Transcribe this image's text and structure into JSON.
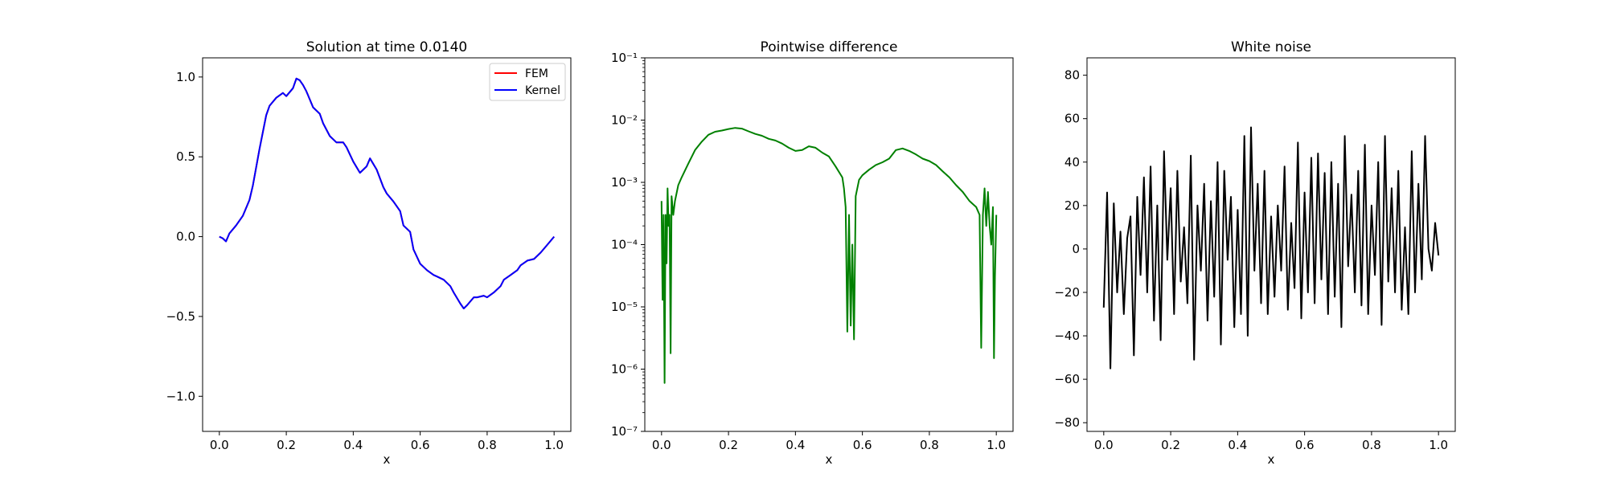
{
  "chart_data": [
    {
      "type": "line",
      "title": "Solution at time 0.0140",
      "xlabel": "x",
      "ylabel": "",
      "xlim": [
        -0.05,
        1.05
      ],
      "ylim": [
        -1.22,
        1.12
      ],
      "xticks": [
        0.0,
        0.2,
        0.4,
        0.6,
        0.8,
        1.0
      ],
      "xtick_labels": [
        "0.0",
        "0.2",
        "0.4",
        "0.6",
        "0.8",
        "1.0"
      ],
      "yticks": [
        -1.0,
        -0.5,
        0.0,
        0.5,
        1.0
      ],
      "ytick_labels": [
        "−1.0",
        "−0.5",
        "0.0",
        "0.5",
        "1.0"
      ],
      "legend_position": "upper right",
      "series": [
        {
          "name": "FEM",
          "color": "#ff0000",
          "x": [
            0.0,
            0.01,
            0.02,
            0.03,
            0.05,
            0.07,
            0.09,
            0.1,
            0.12,
            0.14,
            0.15,
            0.17,
            0.19,
            0.2,
            0.22,
            0.23,
            0.24,
            0.25,
            0.26,
            0.28,
            0.3,
            0.31,
            0.33,
            0.35,
            0.37,
            0.38,
            0.4,
            0.42,
            0.44,
            0.45,
            0.47,
            0.49,
            0.5,
            0.52,
            0.54,
            0.55,
            0.57,
            0.58,
            0.6,
            0.62,
            0.64,
            0.65,
            0.67,
            0.69,
            0.7,
            0.72,
            0.73,
            0.74,
            0.76,
            0.77,
            0.79,
            0.8,
            0.82,
            0.84,
            0.85,
            0.87,
            0.89,
            0.9,
            0.92,
            0.94,
            0.96,
            0.98,
            1.0
          ],
          "y": [
            0.0,
            -0.01,
            -0.03,
            0.02,
            0.07,
            0.13,
            0.23,
            0.32,
            0.55,
            0.76,
            0.82,
            0.87,
            0.9,
            0.88,
            0.93,
            0.99,
            0.98,
            0.95,
            0.91,
            0.81,
            0.77,
            0.71,
            0.63,
            0.59,
            0.59,
            0.56,
            0.47,
            0.4,
            0.44,
            0.49,
            0.42,
            0.31,
            0.27,
            0.22,
            0.16,
            0.07,
            0.03,
            -0.08,
            -0.17,
            -0.21,
            -0.24,
            -0.25,
            -0.27,
            -0.31,
            -0.35,
            -0.42,
            -0.45,
            -0.43,
            -0.38,
            -0.38,
            -0.37,
            -0.38,
            -0.35,
            -0.31,
            -0.27,
            -0.24,
            -0.21,
            -0.18,
            -0.15,
            -0.14,
            -0.1,
            -0.05,
            0.0
          ]
        },
        {
          "name": "Kernel",
          "color": "#0000ff",
          "x": [
            0.0,
            0.01,
            0.02,
            0.03,
            0.05,
            0.07,
            0.09,
            0.1,
            0.12,
            0.14,
            0.15,
            0.17,
            0.19,
            0.2,
            0.22,
            0.23,
            0.24,
            0.25,
            0.26,
            0.28,
            0.3,
            0.31,
            0.33,
            0.35,
            0.37,
            0.38,
            0.4,
            0.42,
            0.44,
            0.45,
            0.47,
            0.49,
            0.5,
            0.52,
            0.54,
            0.55,
            0.57,
            0.58,
            0.6,
            0.62,
            0.64,
            0.65,
            0.67,
            0.69,
            0.7,
            0.72,
            0.73,
            0.74,
            0.76,
            0.77,
            0.79,
            0.8,
            0.82,
            0.84,
            0.85,
            0.87,
            0.89,
            0.9,
            0.92,
            0.94,
            0.96,
            0.98,
            1.0
          ],
          "y": [
            0.0,
            -0.01,
            -0.03,
            0.02,
            0.07,
            0.13,
            0.23,
            0.32,
            0.55,
            0.76,
            0.82,
            0.87,
            0.9,
            0.88,
            0.93,
            0.99,
            0.98,
            0.95,
            0.91,
            0.81,
            0.77,
            0.71,
            0.63,
            0.59,
            0.59,
            0.56,
            0.47,
            0.4,
            0.44,
            0.49,
            0.42,
            0.31,
            0.27,
            0.22,
            0.16,
            0.07,
            0.03,
            -0.08,
            -0.17,
            -0.21,
            -0.24,
            -0.25,
            -0.27,
            -0.31,
            -0.35,
            -0.42,
            -0.45,
            -0.43,
            -0.38,
            -0.38,
            -0.37,
            -0.38,
            -0.35,
            -0.31,
            -0.27,
            -0.24,
            -0.21,
            -0.18,
            -0.15,
            -0.14,
            -0.1,
            -0.05,
            0.0
          ]
        }
      ]
    },
    {
      "type": "line",
      "title": "Pointwise difference",
      "xlabel": "x",
      "ylabel": "",
      "yscale": "log",
      "xlim": [
        -0.05,
        1.05
      ],
      "ylim": [
        1e-07,
        0.1
      ],
      "xticks": [
        0.0,
        0.2,
        0.4,
        0.6,
        0.8,
        1.0
      ],
      "xtick_labels": [
        "0.0",
        "0.2",
        "0.4",
        "0.6",
        "0.8",
        "1.0"
      ],
      "yticks": [
        1e-07,
        1e-06,
        1e-05,
        0.0001,
        0.001,
        0.01,
        0.1
      ],
      "ytick_labels": [
        "10⁻⁷",
        "10⁻⁶",
        "10⁻⁵",
        "10⁻⁴",
        "10⁻³",
        "10⁻²",
        "10⁻¹"
      ],
      "series": [
        {
          "color": "#008000",
          "x": [
            0.0,
            0.003,
            0.006,
            0.009,
            0.012,
            0.015,
            0.018,
            0.021,
            0.024,
            0.027,
            0.03,
            0.035,
            0.04,
            0.05,
            0.06,
            0.08,
            0.1,
            0.12,
            0.14,
            0.16,
            0.18,
            0.2,
            0.22,
            0.24,
            0.26,
            0.28,
            0.3,
            0.32,
            0.34,
            0.36,
            0.38,
            0.4,
            0.42,
            0.44,
            0.46,
            0.48,
            0.5,
            0.52,
            0.54,
            0.545,
            0.55,
            0.555,
            0.56,
            0.565,
            0.57,
            0.575,
            0.58,
            0.59,
            0.6,
            0.62,
            0.64,
            0.66,
            0.68,
            0.7,
            0.72,
            0.74,
            0.76,
            0.78,
            0.8,
            0.82,
            0.84,
            0.86,
            0.88,
            0.9,
            0.92,
            0.94,
            0.95,
            0.955,
            0.96,
            0.965,
            0.97,
            0.975,
            0.98,
            0.985,
            0.99,
            0.993,
            0.996,
            1.0
          ],
          "y": [
            0.0005,
            1.3e-05,
            0.0003,
            6e-07,
            0.0003,
            5e-05,
            0.0008,
            0.0002,
            0.0003,
            1.8e-06,
            0.0006,
            0.0003,
            0.0005,
            0.0009,
            0.0012,
            0.002,
            0.0033,
            0.0045,
            0.0058,
            0.0065,
            0.0068,
            0.0072,
            0.0075,
            0.0073,
            0.0066,
            0.006,
            0.0056,
            0.005,
            0.0047,
            0.0042,
            0.0036,
            0.0032,
            0.0033,
            0.0038,
            0.0036,
            0.003,
            0.0026,
            0.0018,
            0.0012,
            0.0008,
            0.0004,
            4e-06,
            0.0003,
            5e-06,
            0.0001,
            3e-06,
            0.0006,
            0.0011,
            0.0013,
            0.0016,
            0.0019,
            0.0021,
            0.0024,
            0.0033,
            0.0035,
            0.0032,
            0.0028,
            0.0024,
            0.0022,
            0.0019,
            0.0015,
            0.0012,
            0.0009,
            0.0007,
            0.0005,
            0.0004,
            0.0003,
            2.2e-06,
            0.0003,
            0.0008,
            0.0002,
            0.0007,
            0.0002,
            0.0001,
            0.0004,
            1.5e-06,
            3e-05,
            0.0003
          ]
        }
      ]
    },
    {
      "type": "line",
      "title": "White noise",
      "xlabel": "x",
      "ylabel": "",
      "xlim": [
        -0.05,
        1.05
      ],
      "ylim": [
        -84,
        88
      ],
      "xticks": [
        0.0,
        0.2,
        0.4,
        0.6,
        0.8,
        1.0
      ],
      "xtick_labels": [
        "0.0",
        "0.2",
        "0.4",
        "0.6",
        "0.8",
        "1.0"
      ],
      "yticks": [
        -80,
        -60,
        -40,
        -20,
        0,
        20,
        40,
        60,
        80
      ],
      "ytick_labels": [
        "−80",
        "−60",
        "−40",
        "−20",
        "0",
        "20",
        "40",
        "60",
        "80"
      ],
      "series": [
        {
          "color": "#000000",
          "x": [
            0.0,
            0.01,
            0.02,
            0.03,
            0.04,
            0.05,
            0.06,
            0.07,
            0.08,
            0.09,
            0.1,
            0.11,
            0.12,
            0.13,
            0.14,
            0.15,
            0.16,
            0.17,
            0.18,
            0.19,
            0.2,
            0.21,
            0.22,
            0.23,
            0.24,
            0.25,
            0.26,
            0.27,
            0.28,
            0.29,
            0.3,
            0.31,
            0.32,
            0.33,
            0.34,
            0.35,
            0.36,
            0.37,
            0.38,
            0.39,
            0.4,
            0.41,
            0.42,
            0.43,
            0.44,
            0.45,
            0.46,
            0.47,
            0.48,
            0.49,
            0.5,
            0.51,
            0.52,
            0.53,
            0.54,
            0.55,
            0.56,
            0.57,
            0.58,
            0.59,
            0.6,
            0.61,
            0.62,
            0.63,
            0.64,
            0.65,
            0.66,
            0.67,
            0.68,
            0.69,
            0.7,
            0.71,
            0.72,
            0.73,
            0.74,
            0.75,
            0.76,
            0.77,
            0.78,
            0.79,
            0.8,
            0.81,
            0.82,
            0.83,
            0.84,
            0.85,
            0.86,
            0.87,
            0.88,
            0.89,
            0.9,
            0.91,
            0.92,
            0.93,
            0.94,
            0.95,
            0.96,
            0.97,
            0.98,
            0.99,
            1.0
          ],
          "y": [
            -27,
            26,
            -55,
            21,
            -20,
            8,
            -30,
            5,
            15,
            -49,
            24,
            -12,
            33,
            -20,
            38,
            -33,
            20,
            -42,
            45,
            -5,
            28,
            -30,
            36,
            -15,
            10,
            -25,
            43,
            -51,
            20,
            -10,
            30,
            -33,
            22,
            -22,
            40,
            -44,
            36,
            -5,
            24,
            -36,
            18,
            -30,
            52,
            -40,
            56,
            -10,
            30,
            -25,
            36,
            -30,
            15,
            -22,
            20,
            -10,
            38,
            -28,
            12,
            -18,
            49,
            -32,
            26,
            -20,
            42,
            -25,
            44,
            -14,
            35,
            -30,
            40,
            -22,
            30,
            -36,
            52,
            -8,
            25,
            -20,
            36,
            -26,
            48,
            -30,
            20,
            -12,
            40,
            -35,
            52,
            -15,
            28,
            -20,
            36,
            -28,
            10,
            -30,
            45,
            -20,
            30,
            -14,
            52,
            0,
            -10,
            12,
            -3
          ]
        }
      ]
    }
  ]
}
